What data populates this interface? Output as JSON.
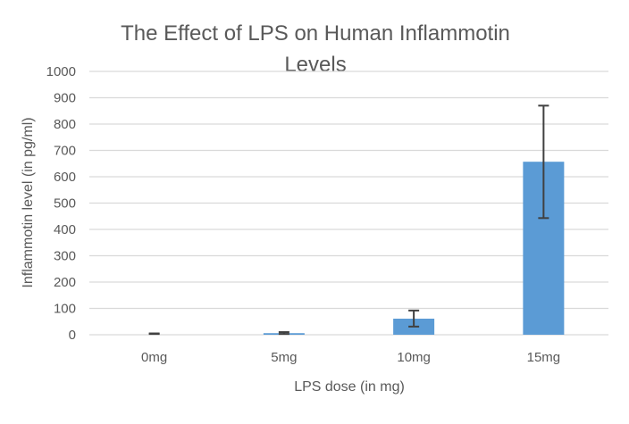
{
  "chart_data": {
    "type": "bar",
    "title_lines": [
      "The Effect of LPS on Human Inflammotin",
      "Levels"
    ],
    "xlabel": "LPS dose (in mg)",
    "ylabel": "Inflammotin level (in pg/ml)",
    "categories": [
      "0mg",
      "5mg",
      "10mg",
      "15mg"
    ],
    "values": [
      0,
      6,
      61,
      657
    ],
    "error_upper": [
      5,
      10,
      92,
      870
    ],
    "error_lower": [
      3,
      3,
      31,
      443
    ],
    "ylim": [
      0,
      1000
    ],
    "yticks": [
      "0",
      "100",
      "200",
      "300",
      "400",
      "500",
      "600",
      "700",
      "800",
      "900",
      "1000"
    ],
    "grid": true,
    "legend": "none",
    "bar_color": "#5b9bd5",
    "error_color": "#404040"
  }
}
